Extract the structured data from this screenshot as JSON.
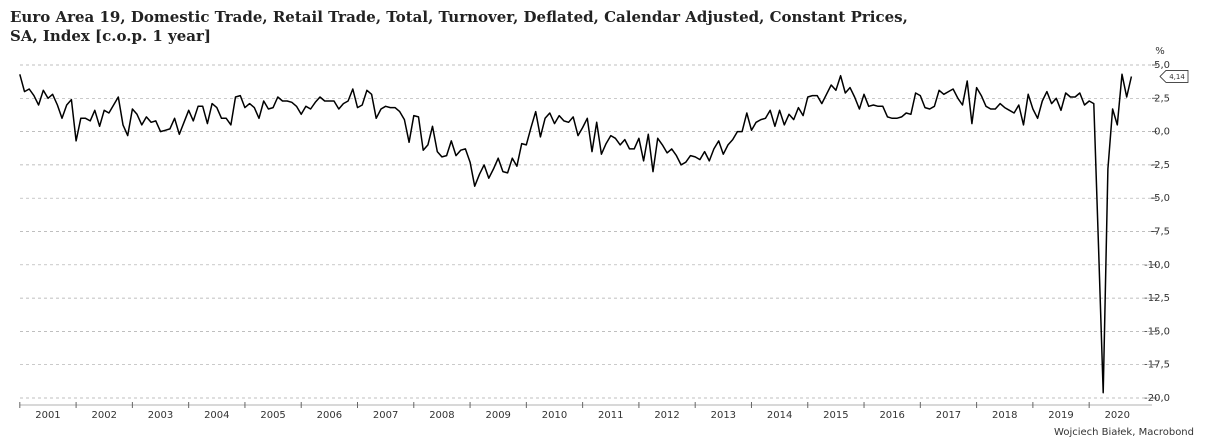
{
  "chart_data": {
    "type": "line",
    "title": "Euro Area 19, Domestic Trade, Retail Trade, Total, Turnover, Deflated, Calendar Adjusted, Constant Prices,",
    "subtitle": "SA, Index [c.o.p. 1 year]",
    "y_unit": "%",
    "source": "Wojciech Białek, Macrobond",
    "x": [
      2001,
      2001.083,
      2001.167,
      2001.25,
      2001.333,
      2001.417,
      2001.5,
      2001.583,
      2001.667,
      2001.75,
      2001.833,
      2001.917,
      2002,
      2002.083,
      2002.167,
      2002.25,
      2002.333,
      2002.417,
      2002.5,
      2002.583,
      2002.667,
      2002.75,
      2002.833,
      2002.917,
      2003,
      2003.083,
      2003.167,
      2003.25,
      2003.333,
      2003.417,
      2003.5,
      2003.583,
      2003.667,
      2003.75,
      2003.833,
      2003.917,
      2004,
      2004.083,
      2004.167,
      2004.25,
      2004.333,
      2004.417,
      2004.5,
      2004.583,
      2004.667,
      2004.75,
      2004.833,
      2004.917,
      2005,
      2005.083,
      2005.167,
      2005.25,
      2005.333,
      2005.417,
      2005.5,
      2005.583,
      2005.667,
      2005.75,
      2005.833,
      2005.917,
      2006,
      2006.083,
      2006.167,
      2006.25,
      2006.333,
      2006.417,
      2006.5,
      2006.583,
      2006.667,
      2006.75,
      2006.833,
      2006.917,
      2007,
      2007.083,
      2007.167,
      2007.25,
      2007.333,
      2007.417,
      2007.5,
      2007.583,
      2007.667,
      2007.75,
      2007.833,
      2007.917,
      2008,
      2008.083,
      2008.167,
      2008.25,
      2008.333,
      2008.417,
      2008.5,
      2008.583,
      2008.667,
      2008.75,
      2008.833,
      2008.917,
      2009,
      2009.083,
      2009.167,
      2009.25,
      2009.333,
      2009.417,
      2009.5,
      2009.583,
      2009.667,
      2009.75,
      2009.833,
      2009.917,
      2010,
      2010.083,
      2010.167,
      2010.25,
      2010.333,
      2010.417,
      2010.5,
      2010.583,
      2010.667,
      2010.75,
      2010.833,
      2010.917,
      2011,
      2011.083,
      2011.167,
      2011.25,
      2011.333,
      2011.417,
      2011.5,
      2011.583,
      2011.667,
      2011.75,
      2011.833,
      2011.917,
      2012,
      2012.083,
      2012.167,
      2012.25,
      2012.333,
      2012.417,
      2012.5,
      2012.583,
      2012.667,
      2012.75,
      2012.833,
      2012.917,
      2013,
      2013.083,
      2013.167,
      2013.25,
      2013.333,
      2013.417,
      2013.5,
      2013.583,
      2013.667,
      2013.75,
      2013.833,
      2013.917,
      2014,
      2014.083,
      2014.167,
      2014.25,
      2014.333,
      2014.417,
      2014.5,
      2014.583,
      2014.667,
      2014.75,
      2014.833,
      2014.917,
      2015,
      2015.083,
      2015.167,
      2015.25,
      2015.333,
      2015.417,
      2015.5,
      2015.583,
      2015.667,
      2015.75,
      2015.833,
      2015.917,
      2016,
      2016.083,
      2016.167,
      2016.25,
      2016.333,
      2016.417,
      2016.5,
      2016.583,
      2016.667,
      2016.75,
      2016.833,
      2016.917,
      2017,
      2017.083,
      2017.167,
      2017.25,
      2017.333,
      2017.417,
      2017.5,
      2017.583,
      2017.667,
      2017.75,
      2017.833,
      2017.917,
      2018,
      2018.083,
      2018.167,
      2018.25,
      2018.333,
      2018.417,
      2018.5,
      2018.583,
      2018.667,
      2018.75,
      2018.833,
      2018.917,
      2019,
      2019.083,
      2019.167,
      2019.25,
      2019.333,
      2019.417,
      2019.5,
      2019.583,
      2019.667,
      2019.75,
      2019.833,
      2019.917,
      2020,
      2020.083,
      2020.167,
      2020.25,
      2020.333,
      2020.417,
      2020.5,
      2020.583,
      2020.667,
      2020.75
    ],
    "series": [
      {
        "color": "#000000",
        "values": [
          4.3,
          3.0,
          3.2,
          2.7,
          2.0,
          3.1,
          2.5,
          2.8,
          2.0,
          1.0,
          2.0,
          2.4,
          -0.7,
          1.0,
          1.0,
          0.8,
          1.6,
          0.4,
          1.6,
          1.4,
          2.0,
          2.6,
          0.5,
          -0.3,
          1.7,
          1.3,
          0.5,
          1.1,
          0.7,
          0.8,
          0.0,
          0.1,
          0.2,
          1.0,
          -0.2,
          0.7,
          1.6,
          0.8,
          1.9,
          1.9,
          0.6,
          2.1,
          1.8,
          1.0,
          1.0,
          0.5,
          2.6,
          2.7,
          1.8,
          2.1,
          1.8,
          1.0,
          2.3,
          1.7,
          1.8,
          2.6,
          2.3,
          2.3,
          2.2,
          1.9,
          1.3,
          1.9,
          1.7,
          2.2,
          2.6,
          2.3,
          2.3,
          2.3,
          1.7,
          2.1,
          2.3,
          3.2,
          1.8,
          2.0,
          3.1,
          2.8,
          1.0,
          1.7,
          1.9,
          1.8,
          1.8,
          1.5,
          0.9,
          -0.8,
          1.2,
          1.1,
          -1.4,
          -1.0,
          0.4,
          -1.5,
          -1.9,
          -1.8,
          -0.7,
          -1.8,
          -1.4,
          -1.3,
          -2.3,
          -4.1,
          -3.2,
          -2.5,
          -3.5,
          -2.8,
          -2.0,
          -3.0,
          -3.1,
          -2.0,
          -2.6,
          -0.9,
          -1.0,
          0.3,
          1.5,
          -0.4,
          1.0,
          1.4,
          0.6,
          1.2,
          0.8,
          0.7,
          1.1,
          -0.3,
          0.3,
          1.0,
          -1.5,
          0.7,
          -1.7,
          -0.9,
          -0.3,
          -0.5,
          -1.0,
          -0.6,
          -1.3,
          -1.3,
          -0.5,
          -2.2,
          -0.2,
          -3.0,
          -0.5,
          -1.0,
          -1.6,
          -1.3,
          -1.8,
          -2.5,
          -2.3,
          -1.8,
          -1.9,
          -2.1,
          -1.5,
          -2.2,
          -1.3,
          -0.7,
          -1.7,
          -1.0,
          -0.6,
          0.0,
          0.0,
          1.4,
          0.1,
          0.7,
          0.9,
          1.0,
          1.6,
          0.4,
          1.6,
          0.5,
          1.3,
          0.9,
          1.8,
          1.2,
          2.6,
          2.7,
          2.7,
          2.1,
          2.8,
          3.5,
          3.1,
          4.2,
          2.9,
          3.3,
          2.6,
          1.7,
          2.8,
          1.9,
          2.0,
          1.9,
          1.9,
          1.1,
          1.0,
          1.0,
          1.1,
          1.4,
          1.3,
          2.9,
          2.7,
          1.8,
          1.7,
          1.9,
          3.1,
          2.8,
          3.0,
          3.2,
          2.5,
          2.0,
          3.8,
          0.6,
          3.3,
          2.7,
          1.9,
          1.7,
          1.7,
          2.1,
          1.8,
          1.6,
          1.4,
          2.0,
          0.5,
          2.8,
          1.7,
          1.0,
          2.3,
          3.0,
          2.1,
          2.5,
          1.6,
          2.9,
          2.6,
          2.6,
          2.9,
          2.0,
          2.3,
          2.1,
          -8.8,
          -19.6,
          -2.8,
          1.7,
          0.5,
          4.3,
          2.6,
          4.14
        ]
      }
    ],
    "annotation": {
      "value": 4.14,
      "label": "4,14"
    },
    "xlim": [
      2000.95,
      2020.85
    ],
    "xticks": [
      {
        "value": 2001.5,
        "label": "2001"
      },
      {
        "value": 2002.5,
        "label": "2002"
      },
      {
        "value": 2003.5,
        "label": "2003"
      },
      {
        "value": 2004.5,
        "label": "2004"
      },
      {
        "value": 2005.5,
        "label": "2005"
      },
      {
        "value": 2006.5,
        "label": "2006"
      },
      {
        "value": 2007.5,
        "label": "2007"
      },
      {
        "value": 2008.5,
        "label": "2008"
      },
      {
        "value": 2009.5,
        "label": "2009"
      },
      {
        "value": 2010.5,
        "label": "2010"
      },
      {
        "value": 2011.5,
        "label": "2011"
      },
      {
        "value": 2012.5,
        "label": "2012"
      },
      {
        "value": 2013.5,
        "label": "2013"
      },
      {
        "value": 2014.5,
        "label": "2014"
      },
      {
        "value": 2015.5,
        "label": "2015"
      },
      {
        "value": 2016.5,
        "label": "2016"
      },
      {
        "value": 2017.5,
        "label": "2017"
      },
      {
        "value": 2018.5,
        "label": "2018"
      },
      {
        "value": 2019.5,
        "label": "2019"
      },
      {
        "value": 2020.5,
        "label": "2020"
      }
    ],
    "ylim": [
      -20,
      5
    ],
    "yticks": [
      {
        "value": 5,
        "label": "5,0"
      },
      {
        "value": 2.5,
        "label": "2,5"
      },
      {
        "value": 0,
        "label": "0,0"
      },
      {
        "value": -2.5,
        "label": "-2,5"
      },
      {
        "value": -5,
        "label": "-5,0"
      },
      {
        "value": -7.5,
        "label": "-7,5"
      },
      {
        "value": -10,
        "label": "-10,0"
      },
      {
        "value": -12.5,
        "label": "-12,5"
      },
      {
        "value": -15,
        "label": "-15,0"
      },
      {
        "value": -17.5,
        "label": "-17,5"
      },
      {
        "value": -20,
        "label": "-20,0"
      }
    ],
    "grid": true
  }
}
